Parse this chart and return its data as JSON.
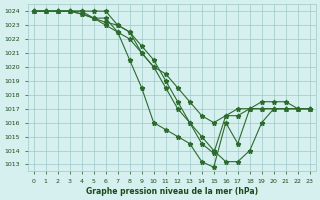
{
  "line1": {
    "x": [
      0,
      1,
      2,
      3,
      4,
      5,
      6,
      7,
      8,
      9,
      10,
      11,
      12,
      13,
      14,
      15,
      16,
      17,
      18,
      19,
      20,
      21,
      22,
      23
    ],
    "y": [
      1024,
      1024,
      1024,
      1024,
      1024,
      1024,
      1024,
      1023,
      1022.5,
      1021,
      1020,
      1018.5,
      1017,
      1016,
      1015,
      1014,
      1013.2,
      1013.2,
      1014,
      1016,
      1017,
      1017,
      1017,
      1017
    ]
  },
  "line2": {
    "x": [
      0,
      1,
      2,
      3,
      4,
      5,
      6,
      7,
      8,
      9,
      10,
      11,
      12,
      13,
      14,
      15,
      16,
      17,
      18,
      19,
      20,
      21,
      22,
      23
    ],
    "y": [
      1024,
      1024,
      1024,
      1024,
      1024,
      1023.5,
      1023.5,
      1022.5,
      1020.5,
      1018.5,
      1016,
      1015.5,
      1015,
      1014.5,
      1013.2,
      1012.8,
      1016,
      1014.5,
      1017,
      1017,
      1017,
      1017,
      1017,
      1017
    ]
  },
  "line3": {
    "x": [
      0,
      1,
      2,
      3,
      4,
      5,
      6,
      7,
      8,
      9,
      10,
      11,
      12,
      13,
      14,
      15,
      16,
      17,
      18,
      19,
      20,
      21,
      22,
      23
    ],
    "y": [
      1024,
      1024,
      1024,
      1024,
      1023.8,
      1023.5,
      1023.2,
      1023,
      1022.5,
      1021.5,
      1020.5,
      1019,
      1017.5,
      1016,
      1014.5,
      1013.8,
      1016.5,
      1016.5,
      1017,
      1017,
      1017,
      1017,
      1017,
      1017
    ]
  },
  "line4": {
    "x": [
      0,
      1,
      2,
      3,
      4,
      5,
      6,
      7,
      8,
      9,
      10,
      11,
      12,
      13,
      14,
      15,
      16,
      17,
      18,
      19,
      20,
      21,
      22,
      23
    ],
    "y": [
      1024,
      1024,
      1024,
      1024,
      1023.8,
      1023.5,
      1023,
      1022.5,
      1022,
      1021,
      1020,
      1019.5,
      1018.5,
      1017.5,
      1016.5,
      1016,
      1016.5,
      1017,
      1017,
      1017.5,
      1017.5,
      1017.5,
      1017,
      1017
    ]
  },
  "line_color": "#2d6a2d",
  "bg_color": "#d6f0f0",
  "grid_color": "#a0c8c8",
  "xlabel": "Graphe pression niveau de la mer (hPa)",
  "xlabel_color": "#1a4a1a",
  "ylabel_values": [
    1013,
    1014,
    1015,
    1016,
    1017,
    1018,
    1019,
    1020,
    1021,
    1022,
    1023,
    1024
  ],
  "ylim": [
    1012.5,
    1024.5
  ],
  "xlim": [
    -0.5,
    23.5
  ],
  "xticks": [
    0,
    1,
    2,
    3,
    4,
    5,
    6,
    7,
    8,
    9,
    10,
    11,
    12,
    13,
    14,
    15,
    16,
    17,
    18,
    19,
    20,
    21,
    22,
    23
  ]
}
